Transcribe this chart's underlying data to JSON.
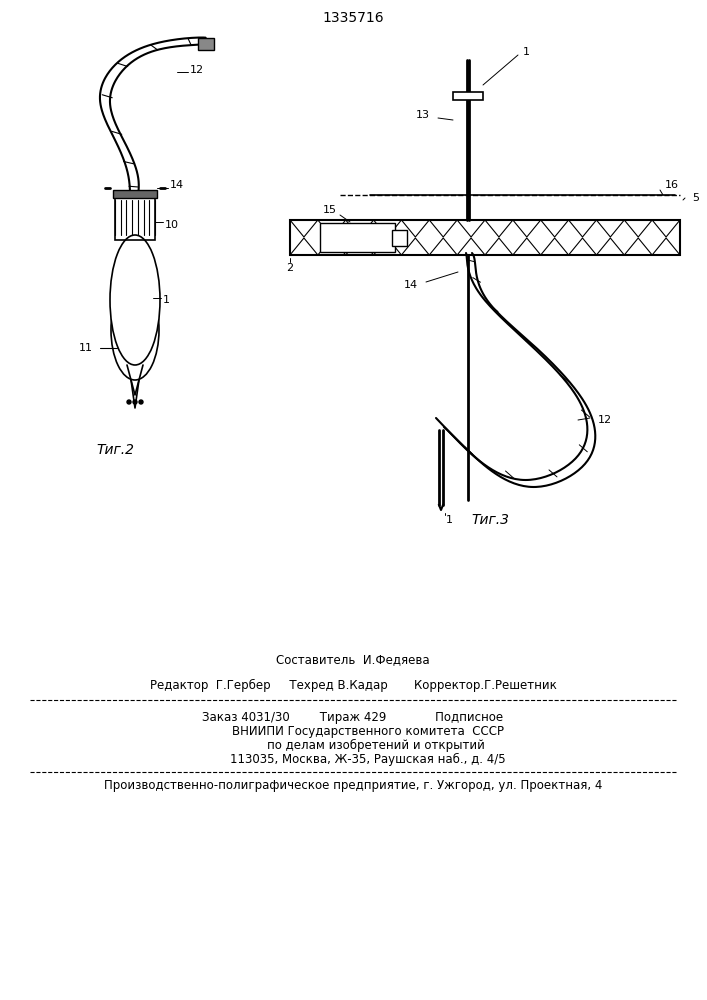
{
  "title": "1335716",
  "fig2_label": "Τиг.2",
  "fig3_label": "Τиг.3",
  "bg_color": "#ffffff",
  "line_color": "#000000",
  "footer_lines": [
    "Составитель  И.Федяева",
    "Редактор  Г.Гербер     Техред В.Кадар       Корректор.Г.Решетник",
    "Заказ 4031/30        Тираж 429             Подписное",
    "        ВНИИПИ Государственного комитета  СССР",
    "            по делам изобретений и открытий",
    "        113035, Москва, Ж-35, Раушская наб., д. 4/5",
    "Производственно-полиграфическое предприятие, г. Ужгород, ул. Проектная, 4"
  ]
}
